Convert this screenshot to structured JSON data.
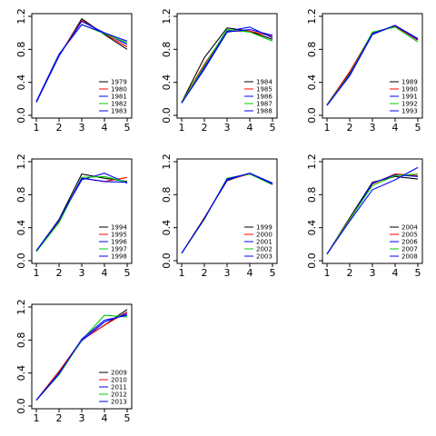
{
  "chart_data": [
    {
      "type": "line",
      "x": [
        1,
        2,
        3,
        4,
        5
      ],
      "ylim": [
        0,
        1.2
      ],
      "xticks": [
        "1",
        "2",
        "3",
        "4",
        "5"
      ],
      "yticks": [
        "0.0",
        "0.4",
        "0.8",
        "1.2"
      ],
      "legend_position": "bottom-right",
      "series": [
        {
          "name": "1979",
          "color": "#000000",
          "values": [
            0.16,
            0.72,
            1.17,
            0.98,
            0.8
          ]
        },
        {
          "name": "1980",
          "color": "#ff0000",
          "values": [
            0.16,
            0.73,
            1.15,
            0.99,
            0.83
          ]
        },
        {
          "name": "1981",
          "color": "#0000ff",
          "values": [
            0.16,
            0.72,
            1.14,
            1.0,
            0.86
          ]
        },
        {
          "name": "1982",
          "color": "#00cc00",
          "values": [
            0.17,
            0.74,
            1.1,
            0.99,
            0.88
          ]
        },
        {
          "name": "1983",
          "color": "#0000ff",
          "values": [
            0.17,
            0.74,
            1.1,
            1.0,
            0.9
          ]
        }
      ]
    },
    {
      "type": "line",
      "x": [
        1,
        2,
        3,
        4,
        5
      ],
      "ylim": [
        0,
        1.2
      ],
      "xticks": [
        "1",
        "2",
        "3",
        "4",
        "5"
      ],
      "yticks": [
        "0.0",
        "0.4",
        "0.8",
        "1.2"
      ],
      "legend_position": "bottom-right",
      "series": [
        {
          "name": "1984",
          "color": "#000000",
          "values": [
            0.16,
            0.7,
            1.06,
            1.02,
            0.92
          ]
        },
        {
          "name": "1985",
          "color": "#ff0000",
          "values": [
            0.16,
            0.62,
            1.02,
            1.02,
            0.96
          ]
        },
        {
          "name": "1986",
          "color": "#0000ff",
          "values": [
            0.15,
            0.58,
            1.02,
            1.07,
            0.94
          ]
        },
        {
          "name": "1987",
          "color": "#00cc00",
          "values": [
            0.16,
            0.6,
            1.04,
            1.01,
            0.9
          ]
        },
        {
          "name": "1988",
          "color": "#0000ff",
          "values": [
            0.15,
            0.56,
            1.01,
            1.04,
            0.97
          ]
        }
      ]
    },
    {
      "type": "line",
      "x": [
        1,
        2,
        3,
        4,
        5
      ],
      "ylim": [
        0,
        1.2
      ],
      "xticks": [
        "1",
        "2",
        "3",
        "4",
        "5"
      ],
      "yticks": [
        "0.0",
        "0.4",
        "0.8",
        "1.2"
      ],
      "legend_position": "bottom-right",
      "series": [
        {
          "name": "1989",
          "color": "#000000",
          "values": [
            0.13,
            0.52,
            0.99,
            1.08,
            0.92
          ]
        },
        {
          "name": "1990",
          "color": "#ff0000",
          "values": [
            0.13,
            0.53,
            1.0,
            1.08,
            0.91
          ]
        },
        {
          "name": "1991",
          "color": "#0000ff",
          "values": [
            0.12,
            0.48,
            0.98,
            1.09,
            0.93
          ]
        },
        {
          "name": "1992",
          "color": "#00cc00",
          "values": [
            0.13,
            0.5,
            1.01,
            1.07,
            0.89
          ]
        },
        {
          "name": "1993",
          "color": "#0000ff",
          "values": [
            0.12,
            0.49,
            0.99,
            1.09,
            0.92
          ]
        }
      ]
    },
    {
      "type": "line",
      "x": [
        1,
        2,
        3,
        4,
        5
      ],
      "ylim": [
        0,
        1.2
      ],
      "xticks": [
        "1",
        "2",
        "3",
        "4",
        "5"
      ],
      "yticks": [
        "0.0",
        "0.4",
        "0.8",
        "1.2"
      ],
      "legend_position": "bottom-right",
      "series": [
        {
          "name": "1994",
          "color": "#000000",
          "values": [
            0.12,
            0.5,
            1.05,
            1.0,
            0.96
          ]
        },
        {
          "name": "1995",
          "color": "#ff0000",
          "values": [
            0.12,
            0.48,
            1.0,
            0.96,
            1.01
          ]
        },
        {
          "name": "1996",
          "color": "#0000ff",
          "values": [
            0.12,
            0.49,
            0.98,
            1.06,
            0.94
          ]
        },
        {
          "name": "1997",
          "color": "#00cc00",
          "values": [
            0.11,
            0.46,
            1.01,
            1.02,
            0.95
          ]
        },
        {
          "name": "1998",
          "color": "#0000ff",
          "values": [
            0.12,
            0.49,
            1.0,
            0.96,
            0.95
          ]
        }
      ]
    },
    {
      "type": "line",
      "x": [
        1,
        2,
        3,
        4,
        5
      ],
      "ylim": [
        0,
        1.2
      ],
      "xticks": [
        "1",
        "2",
        "3",
        "4",
        "5"
      ],
      "yticks": [
        "0.0",
        "0.4",
        "0.8",
        "1.2"
      ],
      "legend_position": "bottom-right",
      "series": [
        {
          "name": "1999",
          "color": "#000000",
          "values": [
            0.09,
            0.52,
            0.97,
            1.06,
            0.94
          ]
        },
        {
          "name": "2000",
          "color": "#ff0000",
          "values": [
            0.09,
            0.52,
            0.98,
            1.05,
            0.93
          ]
        },
        {
          "name": "2001",
          "color": "#0000ff",
          "values": [
            0.09,
            0.51,
            0.98,
            1.06,
            0.94
          ]
        },
        {
          "name": "2002",
          "color": "#00cc00",
          "values": [
            0.09,
            0.5,
            1.0,
            1.05,
            0.92
          ]
        },
        {
          "name": "2003",
          "color": "#0000ff",
          "values": [
            0.09,
            0.51,
            0.99,
            1.06,
            0.93
          ]
        }
      ]
    },
    {
      "type": "line",
      "x": [
        1,
        2,
        3,
        4,
        5
      ],
      "ylim": [
        0,
        1.2
      ],
      "xticks": [
        "1",
        "2",
        "3",
        "4",
        "5"
      ],
      "yticks": [
        "0.0",
        "0.4",
        "0.8",
        "1.2"
      ],
      "legend_position": "bottom-right",
      "series": [
        {
          "name": "2004",
          "color": "#000000",
          "values": [
            0.08,
            0.52,
            0.95,
            1.02,
            0.99
          ]
        },
        {
          "name": "2005",
          "color": "#ff0000",
          "values": [
            0.08,
            0.51,
            0.93,
            1.05,
            1.03
          ]
        },
        {
          "name": "2006",
          "color": "#0000ff",
          "values": [
            0.08,
            0.5,
            0.94,
            1.04,
            1.02
          ]
        },
        {
          "name": "2007",
          "color": "#00cc00",
          "values": [
            0.08,
            0.5,
            0.91,
            1.03,
            1.05
          ]
        },
        {
          "name": "2008",
          "color": "#0000ff",
          "values": [
            0.08,
            0.48,
            0.86,
            0.98,
            1.13
          ]
        }
      ]
    },
    {
      "type": "line",
      "x": [
        1,
        2,
        3,
        4,
        5
      ],
      "ylim": [
        0,
        1.2
      ],
      "xticks": [
        "1",
        "2",
        "3",
        "4",
        "5"
      ],
      "yticks": [
        "0.0",
        "0.4",
        "0.8",
        "1.2"
      ],
      "legend_position": "bottom-right",
      "series": [
        {
          "name": "2009",
          "color": "#000000",
          "values": [
            0.07,
            0.42,
            0.8,
            0.98,
            1.17
          ]
        },
        {
          "name": "2010",
          "color": "#ff0000",
          "values": [
            0.07,
            0.42,
            0.8,
            0.98,
            1.14
          ]
        },
        {
          "name": "2011",
          "color": "#0000ff",
          "values": [
            0.07,
            0.4,
            0.79,
            1.02,
            1.12
          ]
        },
        {
          "name": "2012",
          "color": "#00cc00",
          "values": [
            0.07,
            0.38,
            0.8,
            1.1,
            1.08
          ]
        },
        {
          "name": "2013",
          "color": "#0000ff",
          "values": [
            0.07,
            0.39,
            0.81,
            1.04,
            1.1
          ]
        }
      ]
    }
  ]
}
